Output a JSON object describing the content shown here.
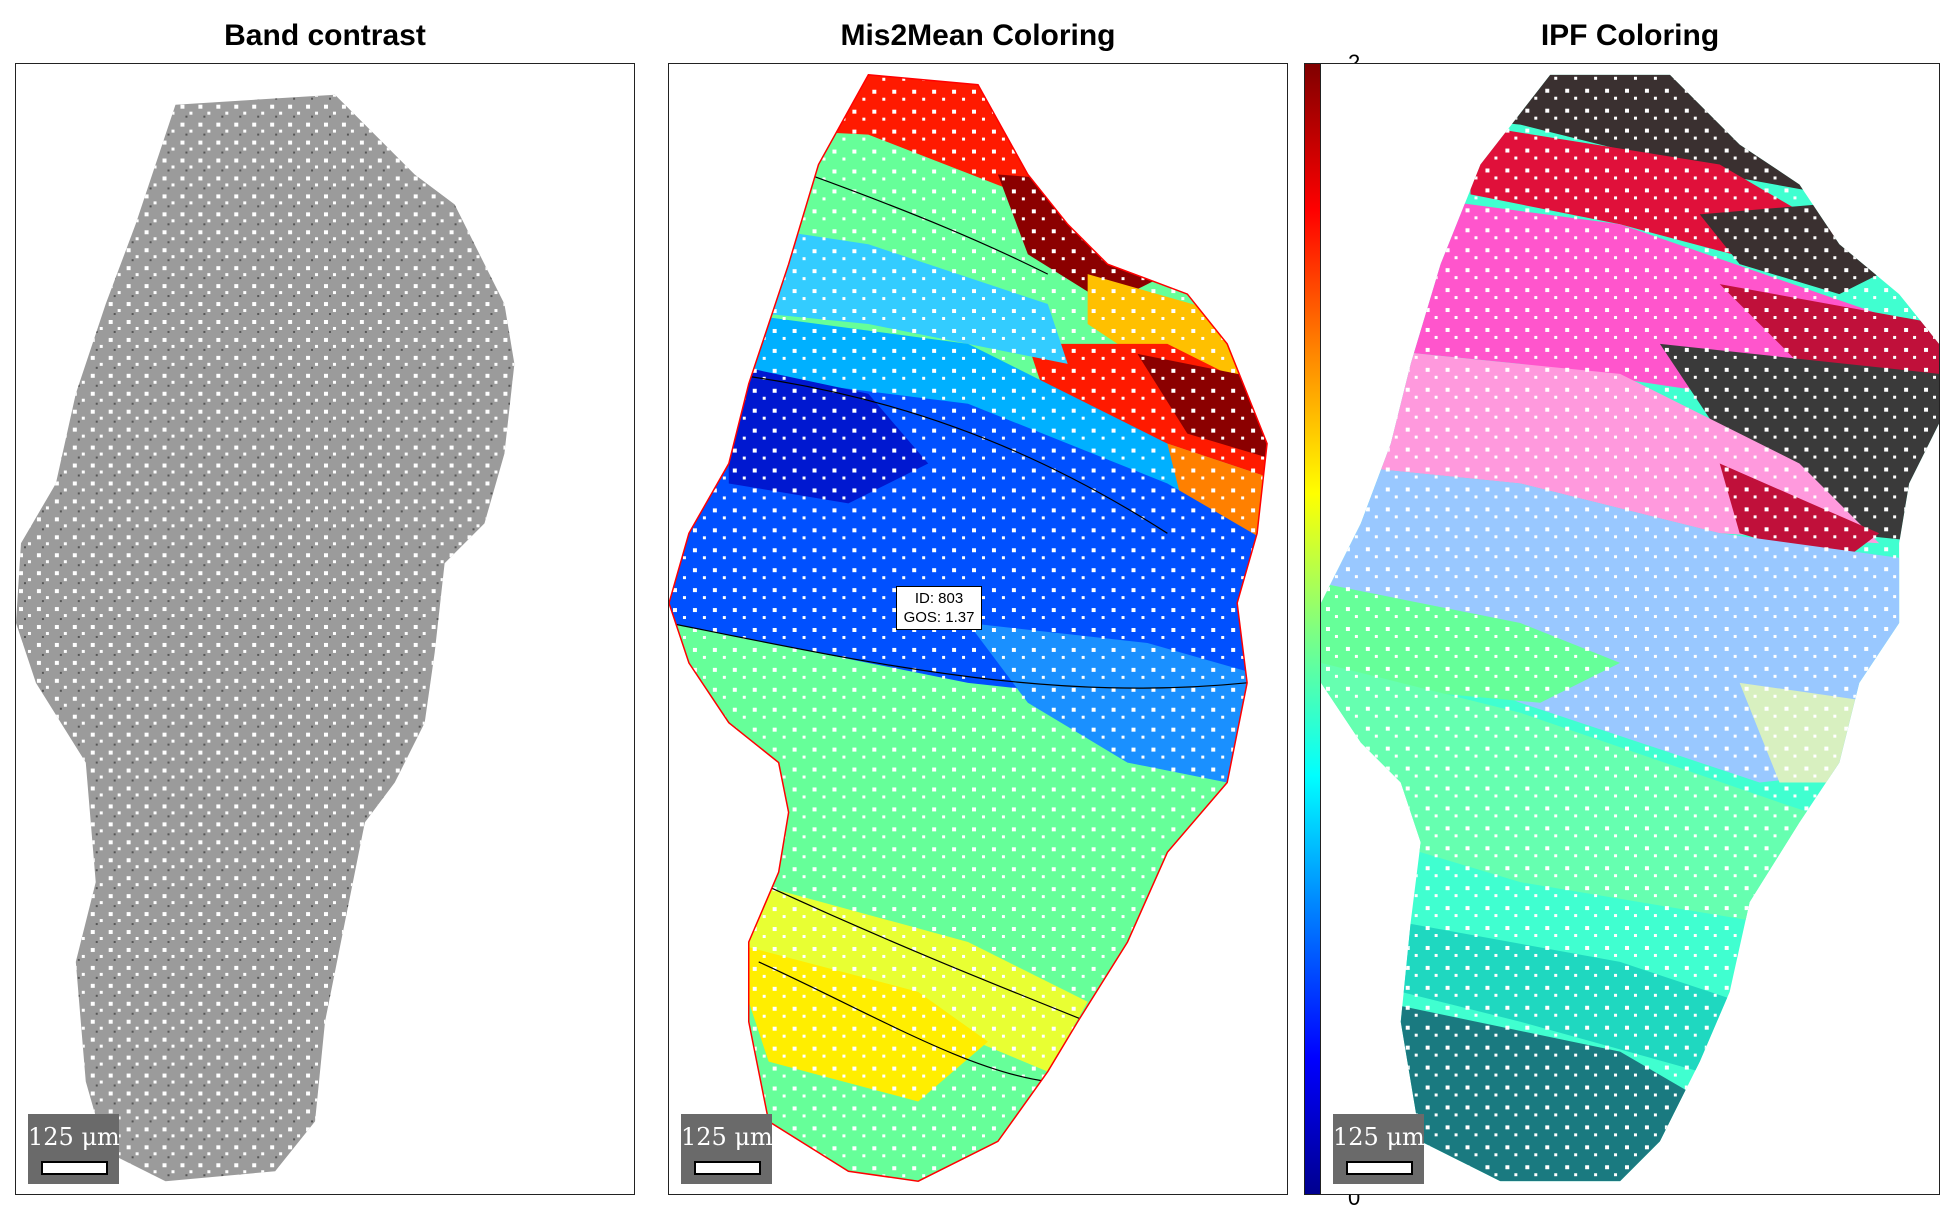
{
  "panels": [
    {
      "title": "Band contrast",
      "scalebar_label": "125 μm"
    },
    {
      "title": "Mis2Mean Coloring",
      "scalebar_label": "125 μm"
    },
    {
      "title": "IPF Coloring",
      "scalebar_label": "125 μm"
    }
  ],
  "colorbar": {
    "max_label": "2",
    "min_label": "0",
    "range": [
      0,
      2
    ]
  },
  "grain_label": {
    "id_text": "ID: 803",
    "gos_text": "GOS: 1.37"
  },
  "colors": {
    "band_contrast_gray": "#9a9a9a",
    "boundary_red": "#ff0000",
    "boundary_black": "#000000",
    "scalebar_bg": "#6a6a6a"
  }
}
